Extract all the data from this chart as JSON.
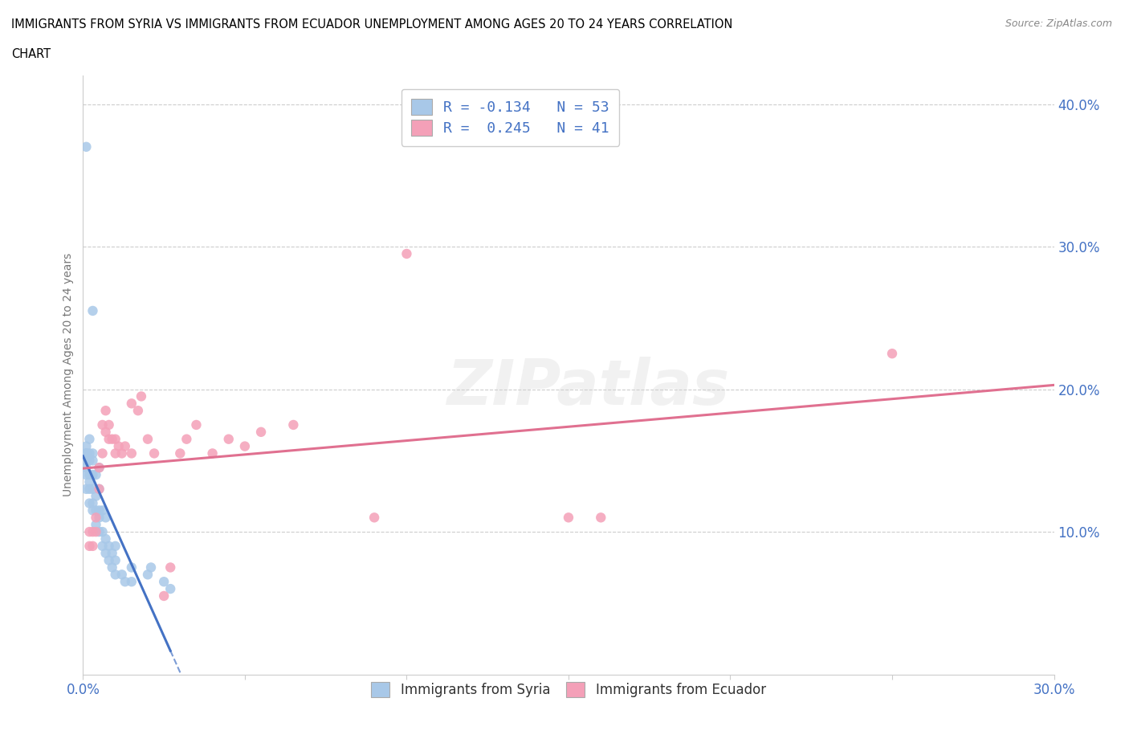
{
  "title_line1": "IMMIGRANTS FROM SYRIA VS IMMIGRANTS FROM ECUADOR UNEMPLOYMENT AMONG AGES 20 TO 24 YEARS CORRELATION",
  "title_line2": "CHART",
  "source": "Source: ZipAtlas.com",
  "ylabel": "Unemployment Among Ages 20 to 24 years",
  "xlabel_syria": "Immigrants from Syria",
  "xlabel_ecuador": "Immigrants from Ecuador",
  "xlim": [
    0.0,
    0.3
  ],
  "ylim": [
    0.0,
    0.42
  ],
  "xtick_pos": [
    0.0,
    0.05,
    0.1,
    0.15,
    0.2,
    0.25,
    0.3
  ],
  "ytick_pos": [
    0.0,
    0.1,
    0.2,
    0.3,
    0.4
  ],
  "color_syria": "#a8c8e8",
  "color_ecuador": "#f4a0b8",
  "color_line_syria": "#4472c4",
  "color_line_ecuador": "#e07090",
  "color_blue_text": "#4472c4",
  "color_darkgray_text": "#555555",
  "watermark_text": "ZIPatlas",
  "legend_text_syria": "R = -0.134   N = 53",
  "legend_text_ecuador": "R =  0.245   N = 41",
  "syria_x": [
    0.001,
    0.001,
    0.001,
    0.001,
    0.001,
    0.001,
    0.001,
    0.001,
    0.002,
    0.002,
    0.002,
    0.002,
    0.002,
    0.002,
    0.002,
    0.003,
    0.003,
    0.003,
    0.003,
    0.003,
    0.003,
    0.004,
    0.004,
    0.004,
    0.004,
    0.005,
    0.005,
    0.005,
    0.005,
    0.005,
    0.006,
    0.006,
    0.006,
    0.007,
    0.007,
    0.007,
    0.008,
    0.008,
    0.009,
    0.009,
    0.01,
    0.01,
    0.01,
    0.012,
    0.013,
    0.015,
    0.015,
    0.02,
    0.021,
    0.025,
    0.027,
    0.001,
    0.003
  ],
  "syria_y": [
    0.13,
    0.14,
    0.145,
    0.15,
    0.155,
    0.155,
    0.155,
    0.16,
    0.12,
    0.13,
    0.135,
    0.14,
    0.15,
    0.155,
    0.165,
    0.115,
    0.12,
    0.13,
    0.14,
    0.15,
    0.155,
    0.105,
    0.115,
    0.125,
    0.14,
    0.1,
    0.11,
    0.115,
    0.13,
    0.145,
    0.09,
    0.1,
    0.115,
    0.085,
    0.095,
    0.11,
    0.08,
    0.09,
    0.075,
    0.085,
    0.07,
    0.08,
    0.09,
    0.07,
    0.065,
    0.065,
    0.075,
    0.07,
    0.075,
    0.065,
    0.06,
    0.37,
    0.255
  ],
  "ecuador_x": [
    0.002,
    0.002,
    0.003,
    0.003,
    0.004,
    0.004,
    0.005,
    0.005,
    0.006,
    0.006,
    0.007,
    0.007,
    0.008,
    0.008,
    0.009,
    0.01,
    0.01,
    0.011,
    0.012,
    0.013,
    0.015,
    0.015,
    0.017,
    0.018,
    0.02,
    0.022,
    0.025,
    0.027,
    0.03,
    0.032,
    0.035,
    0.04,
    0.045,
    0.05,
    0.055,
    0.065,
    0.09,
    0.1,
    0.15,
    0.16,
    0.25
  ],
  "ecuador_y": [
    0.09,
    0.1,
    0.09,
    0.1,
    0.1,
    0.11,
    0.13,
    0.145,
    0.155,
    0.175,
    0.17,
    0.185,
    0.165,
    0.175,
    0.165,
    0.155,
    0.165,
    0.16,
    0.155,
    0.16,
    0.155,
    0.19,
    0.185,
    0.195,
    0.165,
    0.155,
    0.055,
    0.075,
    0.155,
    0.165,
    0.175,
    0.155,
    0.165,
    0.16,
    0.17,
    0.175,
    0.11,
    0.295,
    0.11,
    0.11,
    0.225
  ]
}
